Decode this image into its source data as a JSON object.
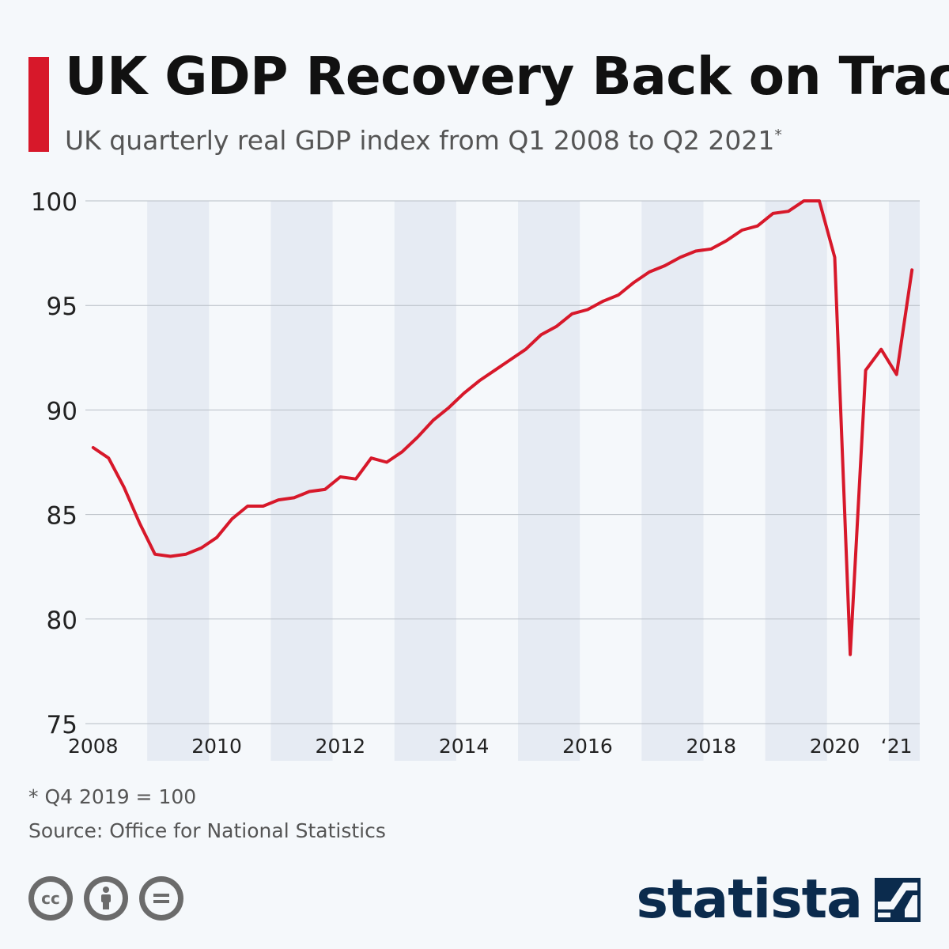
{
  "colors": {
    "accent": "#d7182a",
    "line": "#d7182a",
    "band": "#e6ebf3",
    "grid": "#b8bec6",
    "brand": "#0b2b4d"
  },
  "header": {
    "title": "UK GDP Recovery Back on Track",
    "subtitle": "UK quarterly real GDP index from Q1 2008 to Q2 2021",
    "subtitle_mark": "*"
  },
  "footer": {
    "footnote": "* Q4 2019 = 100",
    "source": "Source: Office for National Statistics",
    "license_icons": [
      "creative-commons-icon",
      "attribution-icon",
      "no-derivatives-icon"
    ],
    "brand": "statista",
    "brand_icon": "statista-logo-icon"
  },
  "chart_data": {
    "type": "line",
    "ylim": [
      75,
      100
    ],
    "y_ticks": [
      100,
      95,
      90,
      85,
      80,
      75
    ],
    "x_tick_labels": [
      {
        "label": "2008",
        "q": 0.5
      },
      {
        "label": "2010",
        "q": 8.5
      },
      {
        "label": "2012",
        "q": 16.5
      },
      {
        "label": "2014",
        "q": 24.5
      },
      {
        "label": "2016",
        "q": 32.5
      },
      {
        "label": "2018",
        "q": 40.5
      },
      {
        "label": "2020",
        "q": 48.5
      },
      {
        "label": "‘21",
        "q": 52.5
      }
    ],
    "shaded_years": [
      "2009",
      "2011",
      "2013",
      "2015",
      "2017",
      "2019",
      "2021"
    ],
    "grid": true,
    "series": [
      {
        "x": [
          "Q1 2008",
          "Q2 2008",
          "Q3 2008",
          "Q4 2008",
          "Q1 2009",
          "Q2 2009",
          "Q3 2009",
          "Q4 2009",
          "Q1 2010",
          "Q2 2010",
          "Q3 2010",
          "Q4 2010",
          "Q1 2011",
          "Q2 2011",
          "Q3 2011",
          "Q4 2011",
          "Q1 2012",
          "Q2 2012",
          "Q3 2012",
          "Q4 2012",
          "Q1 2013",
          "Q2 2013",
          "Q3 2013",
          "Q4 2013",
          "Q1 2014",
          "Q2 2014",
          "Q3 2014",
          "Q4 2014",
          "Q1 2015",
          "Q2 2015",
          "Q3 2015",
          "Q4 2015",
          "Q1 2016",
          "Q2 2016",
          "Q3 2016",
          "Q4 2016",
          "Q1 2017",
          "Q2 2017",
          "Q3 2017",
          "Q4 2017",
          "Q1 2018",
          "Q2 2018",
          "Q3 2018",
          "Q4 2018",
          "Q1 2019",
          "Q2 2019",
          "Q3 2019",
          "Q4 2019",
          "Q1 2020",
          "Q2 2020",
          "Q3 2020",
          "Q4 2020",
          "Q1 2021",
          "Q2 2021"
        ],
        "values": [
          88.2,
          87.7,
          86.3,
          84.6,
          83.1,
          83.0,
          83.1,
          83.4,
          83.9,
          84.8,
          85.4,
          85.4,
          85.7,
          85.8,
          86.1,
          86.2,
          86.8,
          86.7,
          87.7,
          87.5,
          88.0,
          88.7,
          89.5,
          90.1,
          90.8,
          91.4,
          91.9,
          92.4,
          92.9,
          93.6,
          94.0,
          94.6,
          94.8,
          95.2,
          95.5,
          96.1,
          96.6,
          96.9,
          97.3,
          97.6,
          97.7,
          98.1,
          98.6,
          98.8,
          99.4,
          99.5,
          100.0,
          100.0,
          97.3,
          78.3,
          91.9,
          92.9,
          91.7,
          96.7
        ]
      }
    ]
  }
}
